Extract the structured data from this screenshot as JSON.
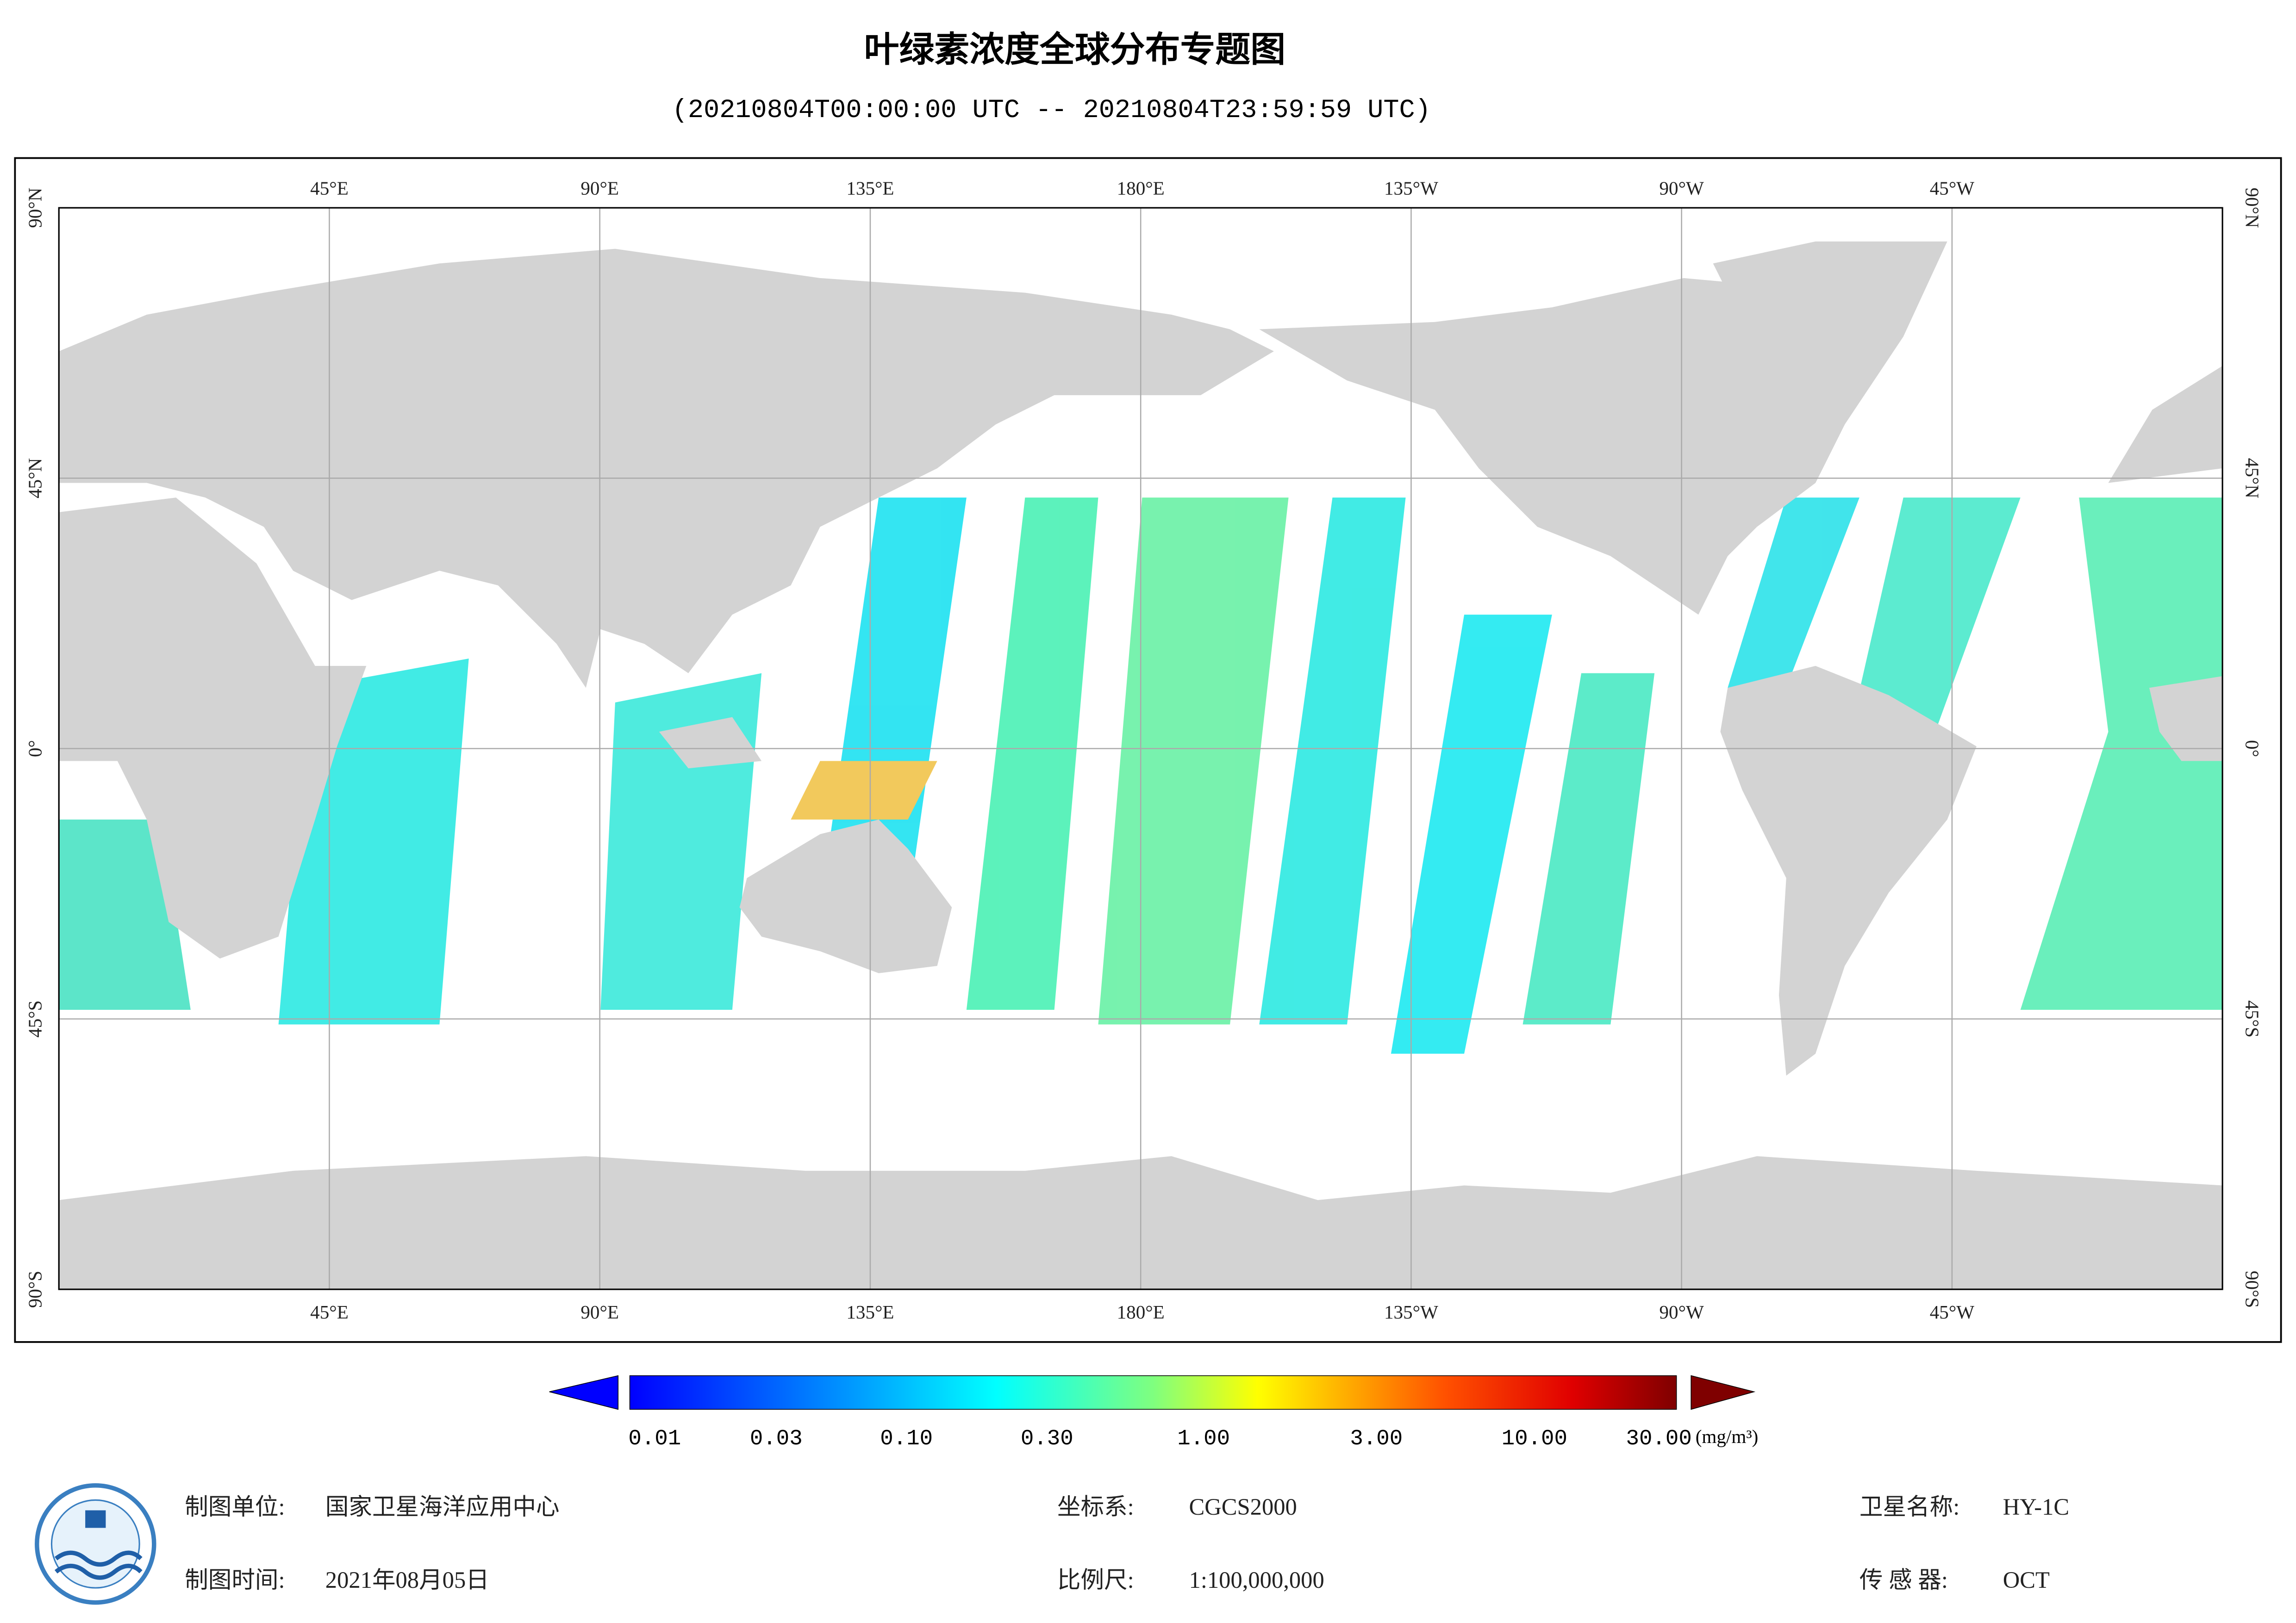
{
  "header": {
    "title": "叶绿素浓度全球分布专题图",
    "subtitle": "(20210804T00:00:00 UTC -- 20210804T23:59:59 UTC)"
  },
  "map": {
    "lon_labels": [
      "45°E",
      "90°E",
      "135°E",
      "180°E",
      "135°W",
      "90°W",
      "45°W"
    ],
    "lat_labels": [
      "90°N",
      "45°N",
      "0°",
      "45°S",
      "90°S"
    ]
  },
  "colorbar": {
    "ticks": [
      "0.01",
      "0.03",
      "0.10",
      "0.30",
      "1.00",
      "3.00",
      "10.00",
      "30.00"
    ],
    "unit": "(mg/m³)"
  },
  "footer": {
    "unit_label": "制图单位:",
    "unit": "国家卫星海洋应用中心",
    "time_label": "制图时间:",
    "time": "2021年08月05日",
    "crs_label": "坐标系:",
    "crs": "CGCS2000",
    "scale_label": "比例尺:",
    "scale": "1:100,000,000",
    "satellite_label": "卫星名称:",
    "satellite": "HY-1C",
    "sensor_label": "传 感 器:",
    "sensor": "OCT"
  }
}
